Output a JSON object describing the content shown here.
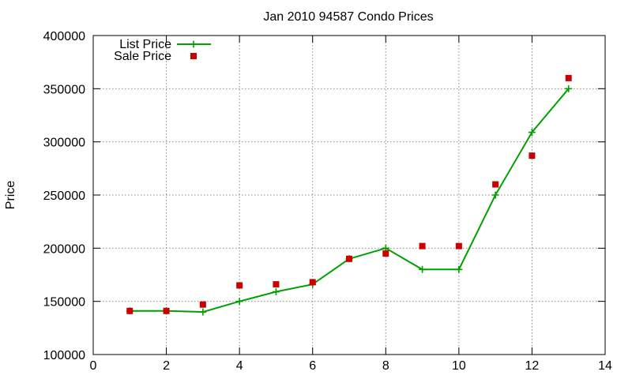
{
  "chart_data": {
    "type": "line",
    "title": "Jan 2010 94587 Condo Prices",
    "ylabel": "Price",
    "xlim": [
      0,
      14
    ],
    "ylim": [
      100000,
      400000
    ],
    "xticks": [
      0,
      2,
      4,
      6,
      8,
      10,
      12,
      14
    ],
    "x_tick_labels": [
      "0",
      "2",
      "4",
      "6",
      "8",
      "10",
      "12",
      "14"
    ],
    "yticks": [
      100000,
      150000,
      200000,
      250000,
      300000,
      350000,
      400000
    ],
    "y_tick_labels": [
      "100000",
      "150000",
      "200000",
      "250000",
      "300000",
      "350000",
      "400000"
    ],
    "grid": true,
    "legend_position": "top-left",
    "series": [
      {
        "name": "List Price",
        "color": "#00a000",
        "line": true,
        "marker": "plus",
        "x": [
          1,
          2,
          3,
          4,
          5,
          6,
          7,
          8,
          9,
          10,
          11,
          12,
          13
        ],
        "y": [
          141000,
          141000,
          140000,
          150000,
          159000,
          166000,
          190000,
          200000,
          180000,
          180000,
          250000,
          309000,
          350000
        ]
      },
      {
        "name": "Sale Price",
        "color": "#cc0000",
        "line": false,
        "marker": "square",
        "x": [
          1,
          2,
          3,
          4,
          5,
          6,
          7,
          8,
          9,
          10,
          11,
          12,
          13
        ],
        "y": [
          141000,
          141000,
          147000,
          165000,
          166000,
          168000,
          190000,
          195000,
          202000,
          202000,
          260000,
          287000,
          360000
        ]
      }
    ]
  }
}
